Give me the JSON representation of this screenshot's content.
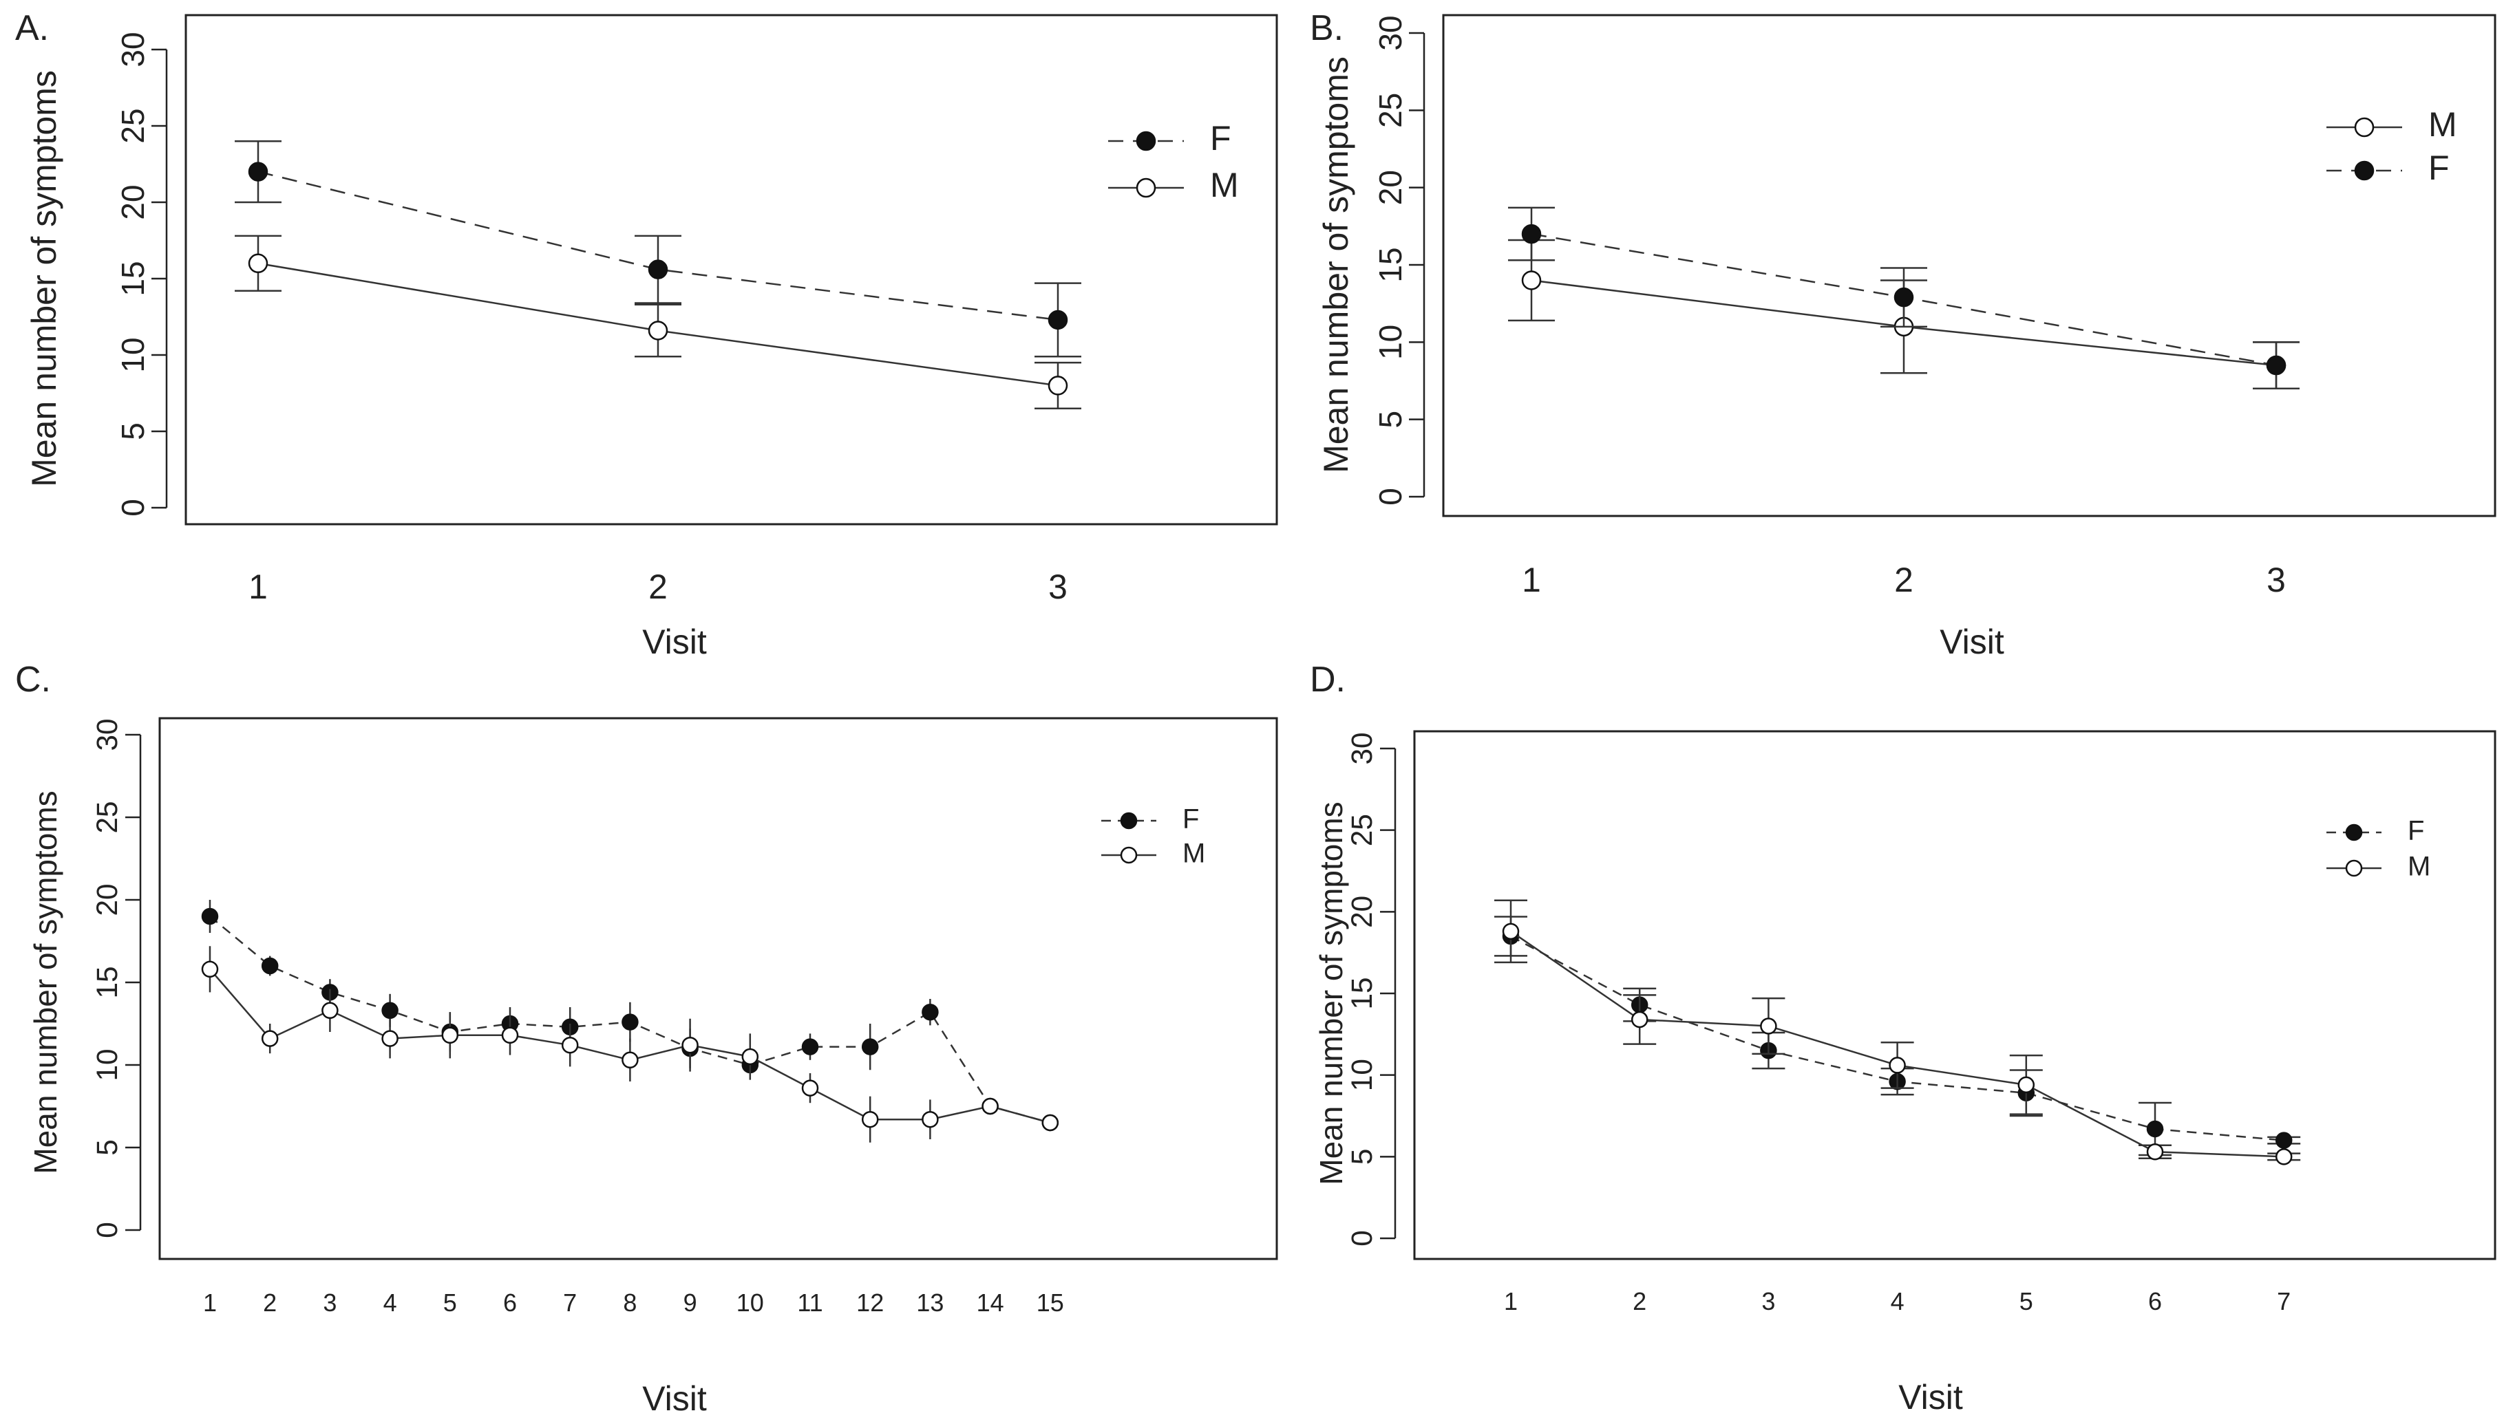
{
  "chart_data": [
    {
      "panel": "A.",
      "type": "line",
      "xlabel": "Visit",
      "ylabel": "Mean number of symptoms",
      "ylim": [
        0,
        30
      ],
      "yticks": [
        0,
        5,
        10,
        15,
        20,
        25,
        30
      ],
      "x": [
        1,
        2,
        3
      ],
      "xticks": [
        1,
        2,
        3
      ],
      "legend": {
        "position": "top-right",
        "order": [
          "F",
          "M"
        ]
      },
      "grid": false,
      "series": [
        {
          "name": "F",
          "style": "dashed",
          "marker": "filled",
          "values": [
            22,
            15.6,
            12.3
          ],
          "err": [
            2,
            2.2,
            2.4
          ]
        },
        {
          "name": "M",
          "style": "solid",
          "marker": "open",
          "values": [
            16,
            11.6,
            8
          ],
          "err": [
            1.8,
            1.7,
            1.5
          ]
        }
      ]
    },
    {
      "panel": "B.",
      "type": "line",
      "xlabel": "Visit",
      "ylabel": "Mean number of symptoms",
      "ylim": [
        0,
        30
      ],
      "yticks": [
        0,
        5,
        10,
        15,
        20,
        25,
        30
      ],
      "x": [
        1,
        2,
        3
      ],
      "xticks": [
        1,
        2,
        3
      ],
      "legend": {
        "position": "top-right",
        "order": [
          "M",
          "F"
        ]
      },
      "grid": false,
      "series": [
        {
          "name": "M",
          "style": "solid",
          "marker": "open",
          "values": [
            14,
            11,
            8.5
          ],
          "err": [
            2.6,
            3,
            1.5
          ]
        },
        {
          "name": "F",
          "style": "dashed",
          "marker": "filled",
          "values": [
            17,
            12.9,
            8.5
          ],
          "err": [
            1.7,
            1.9,
            1.5
          ]
        }
      ]
    },
    {
      "panel": "C.",
      "type": "line",
      "xlabel": "Visit",
      "ylabel": "Mean number of symptoms",
      "ylim": [
        0,
        30
      ],
      "yticks": [
        0,
        5,
        10,
        15,
        20,
        25,
        30
      ],
      "x": [
        1,
        2,
        3,
        4,
        5,
        6,
        7,
        8,
        9,
        10,
        11,
        12,
        13,
        14,
        15
      ],
      "xticks": [
        1,
        2,
        3,
        4,
        5,
        6,
        7,
        8,
        9,
        10,
        11,
        12,
        13,
        14,
        15
      ],
      "legend": {
        "position": "top-right",
        "order": [
          "F",
          "M"
        ]
      },
      "grid": false,
      "series": [
        {
          "name": "F",
          "style": "dashed",
          "marker": "filled",
          "values": [
            19,
            16,
            14.4,
            13.3,
            12,
            12.5,
            12.3,
            12.6,
            11,
            10,
            11.1,
            11.1,
            13.2,
            7.5,
            6.5
          ],
          "err": [
            1,
            0.6,
            0.8,
            1,
            1.2,
            1,
            1.2,
            1.2,
            1.2,
            0.6,
            0.8,
            1.4,
            0.8,
            0.4,
            0.3
          ]
        },
        {
          "name": "M",
          "style": "solid",
          "marker": "open",
          "values": [
            15.8,
            11.6,
            13.3,
            11.6,
            11.8,
            11.8,
            11.2,
            10.3,
            11.2,
            10.5,
            8.6,
            6.7,
            6.7,
            7.5,
            6.5
          ],
          "err": [
            1.4,
            0.9,
            1.3,
            1.2,
            1.4,
            1.2,
            1.3,
            1.3,
            1.6,
            1.4,
            0.9,
            1.4,
            1.2,
            0.4,
            0.3
          ]
        }
      ]
    },
    {
      "panel": "D.",
      "type": "line",
      "xlabel": "Visit",
      "ylabel": "Mean number of symptoms",
      "ylim": [
        0,
        30
      ],
      "yticks": [
        0,
        5,
        10,
        15,
        20,
        25,
        30
      ],
      "x": [
        1,
        2,
        3,
        4,
        5,
        6,
        7
      ],
      "xticks": [
        1,
        2,
        3,
        4,
        5,
        6,
        7
      ],
      "legend": {
        "position": "top-right",
        "order": [
          "F",
          "M"
        ]
      },
      "grid": false,
      "series": [
        {
          "name": "F",
          "style": "dashed",
          "marker": "filled",
          "values": [
            18.5,
            14.3,
            11.5,
            9.6,
            8.9,
            6.7,
            6
          ],
          "err": [
            1.2,
            1,
            1.1,
            0.8,
            1.4,
            1.6,
            0.2
          ]
        },
        {
          "name": "M",
          "style": "solid",
          "marker": "open",
          "values": [
            18.8,
            13.4,
            13,
            10.6,
            9.4,
            5.3,
            5
          ],
          "err": [
            1.9,
            1.5,
            1.7,
            1.4,
            1.8,
            0.4,
            0.2
          ]
        }
      ]
    }
  ]
}
